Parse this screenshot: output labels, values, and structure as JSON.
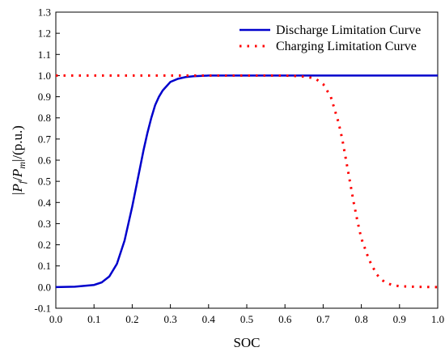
{
  "chart_data": {
    "type": "line",
    "xlabel": "SOC",
    "ylabel": {
      "bar1": "|",
      "p1": "P",
      "sub1": "f",
      "slash": "/",
      "p2": "P",
      "sub2": "m",
      "rest": "|/(p.u.)"
    },
    "xlim": [
      0.0,
      1.0
    ],
    "ylim": [
      -0.1,
      1.3
    ],
    "x_ticks": [
      "0.0",
      "0.1",
      "0.2",
      "0.3",
      "0.4",
      "0.5",
      "0.6",
      "0.7",
      "0.8",
      "0.9",
      "1.0"
    ],
    "y_ticks": [
      "-0.1",
      "0.0",
      "0.1",
      "0.2",
      "0.3",
      "0.4",
      "0.5",
      "0.6",
      "0.7",
      "0.8",
      "0.9",
      "1.0",
      "1.1",
      "1.2",
      "1.3"
    ],
    "legend_position": "top-right",
    "grid": false,
    "series": [
      {
        "name": "Discharge Limitation Curve",
        "style": "solid",
        "color": "#0000cc",
        "x": [
          0.0,
          0.05,
          0.1,
          0.12,
          0.14,
          0.16,
          0.18,
          0.2,
          0.21,
          0.22,
          0.23,
          0.24,
          0.25,
          0.26,
          0.27,
          0.28,
          0.3,
          0.32,
          0.34,
          0.36,
          0.4,
          0.5,
          0.6,
          0.7,
          0.8,
          0.9,
          1.0
        ],
        "y": [
          0.0,
          0.002,
          0.01,
          0.022,
          0.05,
          0.11,
          0.22,
          0.38,
          0.47,
          0.56,
          0.65,
          0.73,
          0.8,
          0.86,
          0.9,
          0.93,
          0.97,
          0.985,
          0.993,
          0.997,
          1.0,
          1.0,
          1.0,
          1.0,
          1.0,
          1.0,
          1.0
        ]
      },
      {
        "name": "Charging Limitation Curve",
        "style": "dotted",
        "color": "#ff0000",
        "x": [
          0.0,
          0.1,
          0.2,
          0.3,
          0.4,
          0.5,
          0.6,
          0.64,
          0.66,
          0.68,
          0.7,
          0.72,
          0.74,
          0.75,
          0.76,
          0.77,
          0.78,
          0.79,
          0.8,
          0.82,
          0.84,
          0.86,
          0.88,
          0.9,
          0.95,
          1.0
        ],
        "y": [
          1.0,
          1.0,
          1.0,
          1.0,
          1.0,
          1.0,
          1.0,
          0.997,
          0.993,
          0.985,
          0.96,
          0.9,
          0.78,
          0.7,
          0.6,
          0.5,
          0.4,
          0.31,
          0.23,
          0.13,
          0.06,
          0.025,
          0.01,
          0.004,
          0.001,
          0.0
        ]
      }
    ]
  }
}
